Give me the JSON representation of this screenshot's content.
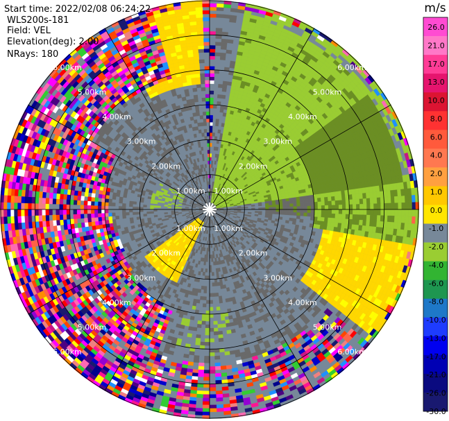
{
  "info": {
    "start_time": "Start time: 2022/02/08 06:24:22",
    "instrument": "WLS200s-181",
    "field": "Field: VEL",
    "elevation": "Elevation(deg): 2.00",
    "nrays": "NRays: 180"
  },
  "chart_data": {
    "type": "heatmap",
    "projection": "polar-ppi",
    "field": "VEL",
    "units": "m/s",
    "n_rays": 180,
    "elevation_deg": 2.0,
    "range_km": [
      0,
      6.0
    ],
    "range_rings_km": [
      1.0,
      2.0,
      3.0,
      4.0,
      5.0,
      6.0
    ],
    "ring_labels": [
      "1.00km",
      "2.00km",
      "3.00km",
      "4.00km",
      "5.00km",
      "6.00km"
    ],
    "spokes_deg": [
      0,
      30,
      60,
      90,
      120,
      150,
      180,
      210,
      240,
      270,
      300,
      330
    ],
    "colorbar": {
      "label": "m/s",
      "ticks": [
        "26.0",
        "21.0",
        "17.0",
        "13.0",
        "10.0",
        "8.0",
        "6.0",
        "4.0",
        "2.0",
        "1.0",
        "0.0",
        "-1.0",
        "-2.0",
        "-4.0",
        "-6.0",
        "-8.0",
        "-10.0",
        "-13.0",
        "-17.0",
        "-21.0",
        "-26.0",
        "-30.0"
      ],
      "colors": [
        "#191970",
        "#0a0a80",
        "#0000b4",
        "#0000f0",
        "#1e3cff",
        "#1e78c8",
        "#1e9650",
        "#32b432",
        "#9acd32",
        "#778899",
        "#ffe600",
        "#ffc800",
        "#ffa040",
        "#ff7850",
        "#ff5a3c",
        "#ff3232",
        "#dc1432",
        "#e6146e",
        "#ff3c96",
        "#ff78c8",
        "#ff4bd2"
      ]
    },
    "sectors": [
      {
        "az": [
          0,
          2
        ],
        "note": "narrow band of random noise near north"
      },
      {
        "az": [
          2,
          10
        ],
        "r": [
          3.6,
          6.0
        ],
        "level": "0.0 to 1.0"
      },
      {
        "az": [
          10,
          80
        ],
        "r": [
          0.3,
          6.0
        ],
        "level": "-2.0 to 1.0"
      },
      {
        "az": [
          80,
          115
        ],
        "r": [
          3.0,
          6.0
        ],
        "level": "-2.0 to -1.0"
      },
      {
        "az": [
          100,
          170
        ],
        "r": [
          3.2,
          6.0
        ],
        "level": "2.0 to 6.0"
      },
      {
        "az": [
          150,
          205
        ],
        "r": [
          0.0,
          6.0
        ],
        "level": "0.0 to 1.0"
      },
      {
        "az": [
          205,
          230
        ],
        "r": [
          0.3,
          2.2
        ],
        "level": "2.0 to 4.0"
      },
      {
        "az": [
          205,
          300
        ],
        "r": [
          2.8,
          6.0
        ],
        "level": "noise"
      },
      {
        "az": [
          300,
          345
        ],
        "r": [
          3.8,
          6.0
        ],
        "level": "noise"
      },
      {
        "az": [
          330,
          352
        ],
        "r": [
          4.0,
          6.0
        ],
        "level": "2.0 to 6.0"
      }
    ]
  }
}
